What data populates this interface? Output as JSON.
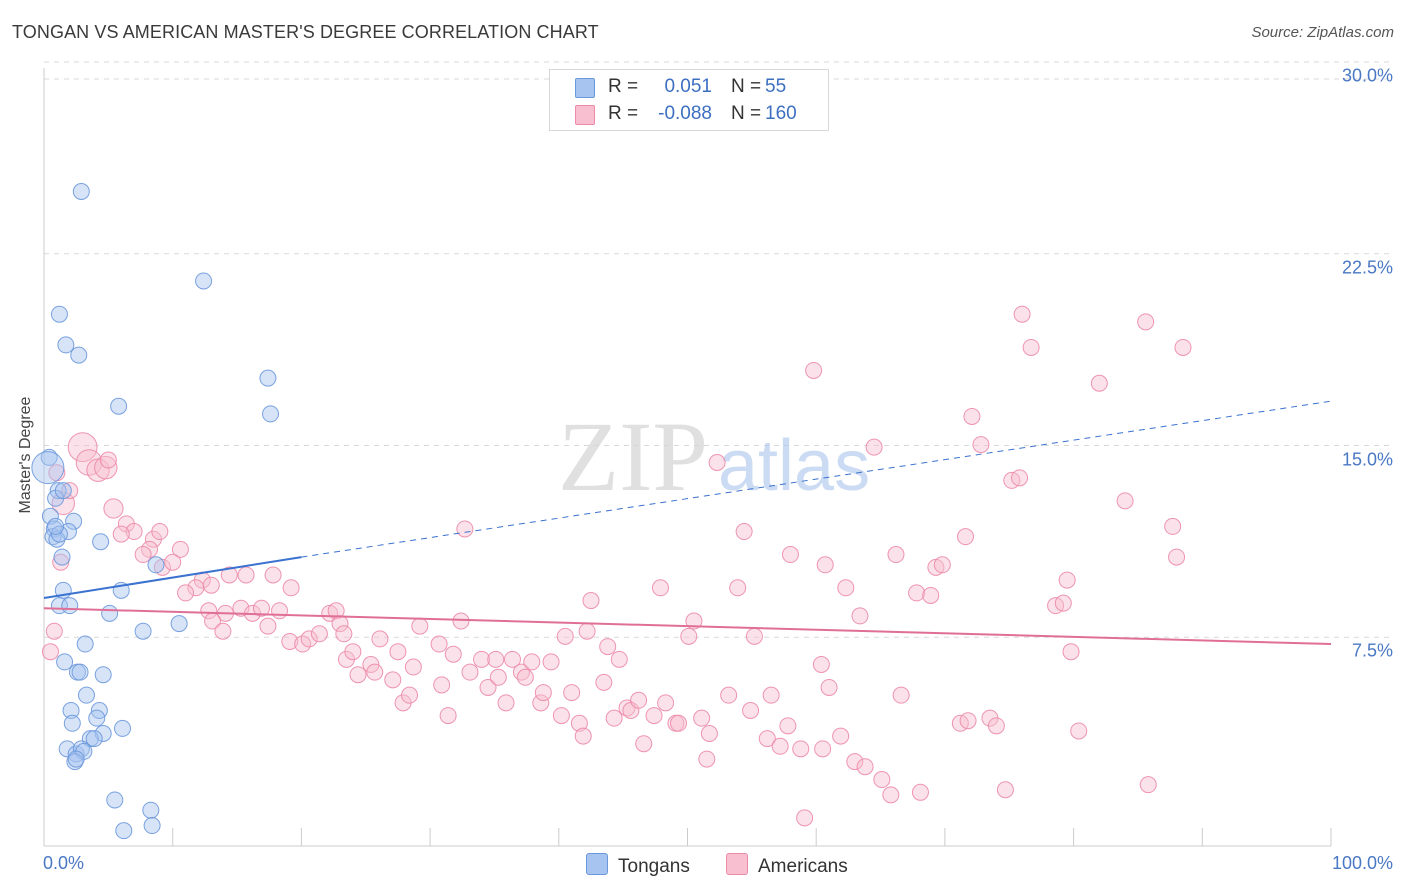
{
  "header": {
    "title": "TONGAN VS AMERICAN MASTER'S DEGREE CORRELATION CHART",
    "source": "Source: ZipAtlas.com"
  },
  "watermark": {
    "zip": "ZIP",
    "atlas": "atlas"
  },
  "legend": {
    "rows": [
      {
        "r_label": "R =",
        "r_value": "0.051",
        "n_label": "N =",
        "n_value": "55",
        "color": "#a7c4f0",
        "stroke": "#6b98dc"
      },
      {
        "r_label": "R =",
        "r_value": "-0.088",
        "n_label": "N =",
        "n_value": "160",
        "color": "#f7bfd0",
        "stroke": "#ec8aa8"
      }
    ]
  },
  "bottom_legend": {
    "tongans": "Tongans",
    "americans": "Americans"
  },
  "colors": {
    "tongan_fill": "#a7c4f0",
    "tongan_stroke": "#6b98dc",
    "tongan_line": "#3a72cf",
    "american_fill": "#f7bfd0",
    "american_stroke": "#ec8aa8",
    "american_line": "#e06f98",
    "tick_text": "#4a78c4",
    "grid": "#d9d9d9"
  },
  "chart_data": {
    "type": "scatter",
    "title": "TONGAN VS AMERICAN MASTER'S DEGREE CORRELATION CHART",
    "xlabel": "",
    "ylabel": "Master's Degree",
    "xlim": [
      0,
      100
    ],
    "ylim": [
      0,
      30
    ],
    "x_tick_labels": [
      "0.0%",
      "100.0%"
    ],
    "y_ticks": [
      7.5,
      15.0,
      22.5,
      30.0
    ],
    "y_tick_labels": [
      "7.5%",
      "15.0%",
      "22.5%",
      "30.0%"
    ],
    "grid": true,
    "legend_position": "top-center",
    "series": [
      {
        "name": "Tongans",
        "r": 0.051,
        "n": 55,
        "trend": {
          "x0": 0,
          "y0": 9.7,
          "x1": 20,
          "y1": 11.3,
          "dashed_x1": 100,
          "dashed_y1": 17.4
        },
        "points": [
          [
            2.9,
            25.6
          ],
          [
            12.4,
            22.1
          ],
          [
            1.2,
            20.8
          ],
          [
            1.7,
            19.6
          ],
          [
            2.7,
            19.2
          ],
          [
            17.4,
            18.3
          ],
          [
            5.8,
            17.2
          ],
          [
            17.6,
            16.9
          ],
          [
            0.4,
            15.2
          ],
          [
            0.3,
            14.8
          ],
          [
            1.1,
            13.9
          ],
          [
            0.9,
            13.6
          ],
          [
            0.5,
            12.9
          ],
          [
            0.8,
            12.4
          ],
          [
            2.3,
            12.7
          ],
          [
            1.9,
            12.3
          ],
          [
            0.7,
            12.1
          ],
          [
            1.0,
            12.0
          ],
          [
            4.4,
            11.9
          ],
          [
            1.4,
            11.3
          ],
          [
            8.7,
            11.0
          ],
          [
            1.5,
            10.0
          ],
          [
            6.0,
            10.0
          ],
          [
            1.2,
            9.4
          ],
          [
            2.0,
            9.4
          ],
          [
            5.1,
            9.1
          ],
          [
            7.7,
            8.4
          ],
          [
            10.5,
            8.7
          ],
          [
            3.2,
            7.9
          ],
          [
            1.6,
            7.2
          ],
          [
            2.6,
            6.8
          ],
          [
            2.8,
            6.8
          ],
          [
            4.6,
            6.7
          ],
          [
            3.3,
            5.9
          ],
          [
            2.1,
            5.3
          ],
          [
            4.3,
            5.3
          ],
          [
            2.2,
            4.8
          ],
          [
            4.1,
            5.0
          ],
          [
            6.1,
            4.6
          ],
          [
            4.6,
            4.4
          ],
          [
            3.6,
            4.2
          ],
          [
            3.9,
            4.2
          ],
          [
            1.8,
            3.8
          ],
          [
            2.5,
            3.6
          ],
          [
            2.9,
            3.8
          ],
          [
            3.1,
            3.7
          ],
          [
            2.4,
            3.3
          ],
          [
            5.5,
            1.8
          ],
          [
            8.3,
            1.4
          ],
          [
            6.2,
            0.6
          ],
          [
            8.4,
            0.8
          ],
          [
            1.5,
            13.9
          ],
          [
            1.2,
            12.2
          ],
          [
            0.9,
            12.5
          ],
          [
            2.5,
            3.4
          ]
        ],
        "sizes": [
          10,
          10,
          10,
          10,
          10,
          10,
          10,
          10,
          10,
          20,
          10,
          10,
          10,
          10,
          10,
          10,
          10,
          10,
          10,
          10,
          10,
          10,
          10,
          10,
          10,
          10,
          10,
          10,
          10,
          10,
          10,
          10,
          10,
          10,
          10,
          10,
          10,
          10,
          10,
          10,
          10,
          10,
          10,
          10,
          10,
          10,
          10,
          10,
          10,
          10,
          10,
          10,
          10,
          10,
          10
        ]
      },
      {
        "name": "Americans",
        "r": -0.088,
        "n": 160,
        "trend": {
          "x0": 0,
          "y0": 9.3,
          "x1": 100,
          "y1": 7.9
        },
        "points": [
          [
            3.0,
            15.6
          ],
          [
            3.5,
            15.0
          ],
          [
            4.2,
            14.7
          ],
          [
            4.8,
            14.8
          ],
          [
            1.5,
            13.4
          ],
          [
            5.4,
            13.2
          ],
          [
            6.4,
            12.6
          ],
          [
            7.0,
            12.3
          ],
          [
            8.5,
            12.0
          ],
          [
            8.2,
            11.6
          ],
          [
            10.6,
            11.6
          ],
          [
            1.3,
            11.1
          ],
          [
            7.7,
            11.4
          ],
          [
            9.2,
            10.9
          ],
          [
            14.4,
            10.6
          ],
          [
            15.7,
            10.6
          ],
          [
            12.3,
            10.4
          ],
          [
            11.8,
            10.1
          ],
          [
            11.0,
            9.9
          ],
          [
            13.0,
            10.2
          ],
          [
            17.8,
            10.6
          ],
          [
            19.2,
            10.1
          ],
          [
            0.8,
            8.4
          ],
          [
            0.5,
            7.6
          ],
          [
            12.8,
            9.2
          ],
          [
            14.1,
            9.1
          ],
          [
            15.3,
            9.3
          ],
          [
            16.2,
            9.1
          ],
          [
            16.9,
            9.3
          ],
          [
            18.3,
            9.2
          ],
          [
            13.1,
            8.8
          ],
          [
            13.9,
            8.4
          ],
          [
            17.4,
            8.6
          ],
          [
            19.1,
            8.0
          ],
          [
            20.1,
            7.9
          ],
          [
            20.6,
            8.1
          ],
          [
            21.4,
            8.3
          ],
          [
            22.2,
            9.1
          ],
          [
            22.7,
            9.2
          ],
          [
            23.0,
            8.7
          ],
          [
            23.3,
            8.3
          ],
          [
            23.5,
            7.3
          ],
          [
            24.4,
            6.7
          ],
          [
            24.0,
            7.6
          ],
          [
            25.4,
            7.1
          ],
          [
            25.7,
            6.8
          ],
          [
            26.1,
            8.1
          ],
          [
            27.1,
            6.5
          ],
          [
            27.9,
            5.6
          ],
          [
            27.5,
            7.6
          ],
          [
            28.4,
            5.9
          ],
          [
            28.7,
            7.0
          ],
          [
            29.2,
            8.6
          ],
          [
            30.7,
            7.9
          ],
          [
            30.9,
            6.3
          ],
          [
            31.4,
            5.1
          ],
          [
            31.8,
            7.5
          ],
          [
            32.4,
            8.8
          ],
          [
            32.7,
            12.4
          ],
          [
            33.1,
            6.8
          ],
          [
            34.0,
            7.3
          ],
          [
            34.5,
            6.2
          ],
          [
            35.1,
            7.3
          ],
          [
            35.3,
            6.6
          ],
          [
            35.9,
            5.6
          ],
          [
            36.4,
            7.3
          ],
          [
            37.1,
            6.8
          ],
          [
            37.4,
            6.6
          ],
          [
            37.9,
            7.2
          ],
          [
            38.6,
            5.6
          ],
          [
            38.8,
            6.0
          ],
          [
            39.4,
            7.2
          ],
          [
            40.2,
            5.1
          ],
          [
            40.5,
            8.2
          ],
          [
            41.0,
            6.0
          ],
          [
            41.6,
            4.8
          ],
          [
            41.9,
            4.3
          ],
          [
            42.5,
            9.6
          ],
          [
            42.2,
            8.4
          ],
          [
            43.5,
            6.4
          ],
          [
            43.8,
            7.8
          ],
          [
            44.3,
            5.0
          ],
          [
            44.7,
            7.3
          ],
          [
            45.3,
            5.4
          ],
          [
            45.6,
            5.3
          ],
          [
            46.2,
            5.7
          ],
          [
            46.6,
            4.0
          ],
          [
            47.4,
            5.1
          ],
          [
            47.9,
            10.1
          ],
          [
            48.3,
            5.6
          ],
          [
            49.1,
            4.8
          ],
          [
            49.3,
            4.8
          ],
          [
            50.1,
            8.2
          ],
          [
            50.5,
            8.8
          ],
          [
            51.1,
            5.0
          ],
          [
            51.5,
            3.4
          ],
          [
            51.7,
            4.4
          ],
          [
            52.3,
            15.0
          ],
          [
            53.2,
            5.9
          ],
          [
            53.9,
            10.1
          ],
          [
            54.4,
            12.3
          ],
          [
            54.9,
            5.3
          ],
          [
            55.2,
            8.2
          ],
          [
            56.2,
            4.2
          ],
          [
            56.5,
            5.9
          ],
          [
            57.2,
            3.9
          ],
          [
            57.8,
            4.7
          ],
          [
            58.0,
            11.4
          ],
          [
            58.8,
            3.8
          ],
          [
            59.1,
            1.1
          ],
          [
            59.8,
            18.6
          ],
          [
            60.5,
            3.8
          ],
          [
            60.4,
            7.1
          ],
          [
            60.7,
            11.0
          ],
          [
            61.0,
            6.2
          ],
          [
            61.9,
            4.3
          ],
          [
            62.3,
            10.1
          ],
          [
            63.0,
            3.3
          ],
          [
            63.4,
            9.0
          ],
          [
            63.8,
            3.1
          ],
          [
            64.5,
            15.6
          ],
          [
            65.1,
            2.6
          ],
          [
            65.8,
            2.0
          ],
          [
            66.2,
            11.4
          ],
          [
            66.6,
            5.9
          ],
          [
            67.8,
            9.9
          ],
          [
            68.1,
            2.1
          ],
          [
            68.9,
            9.8
          ],
          [
            69.3,
            10.9
          ],
          [
            69.8,
            11.0
          ],
          [
            71.2,
            4.8
          ],
          [
            71.6,
            12.1
          ],
          [
            71.8,
            4.9
          ],
          [
            72.1,
            16.8
          ],
          [
            72.8,
            15.7
          ],
          [
            73.5,
            5.0
          ],
          [
            74.0,
            4.7
          ],
          [
            74.7,
            2.2
          ],
          [
            75.2,
            14.3
          ],
          [
            75.8,
            14.4
          ],
          [
            76.0,
            20.8
          ],
          [
            76.7,
            19.5
          ],
          [
            78.6,
            9.4
          ],
          [
            79.2,
            9.5
          ],
          [
            79.5,
            10.4
          ],
          [
            79.8,
            7.6
          ],
          [
            80.4,
            4.5
          ],
          [
            82.0,
            18.1
          ],
          [
            84.0,
            13.5
          ],
          [
            85.6,
            20.5
          ],
          [
            85.8,
            2.4
          ],
          [
            87.7,
            12.5
          ],
          [
            88.0,
            11.3
          ],
          [
            88.5,
            19.5
          ],
          [
            1.0,
            14.6
          ],
          [
            2.0,
            13.9
          ],
          [
            5.0,
            15.1
          ],
          [
            6.0,
            12.2
          ],
          [
            9.0,
            12.3
          ],
          [
            10.0,
            11.1
          ]
        ],
        "sizes": [
          18,
          16,
          14,
          14,
          14,
          12,
          10,
          10,
          10,
          10,
          10,
          10,
          10,
          10,
          10,
          10,
          10,
          10,
          10,
          10,
          10,
          10,
          10,
          10,
          10,
          10,
          10,
          10,
          10,
          10,
          10,
          10,
          10,
          10,
          10,
          10,
          10,
          10,
          10,
          10,
          10,
          10,
          10,
          10,
          10,
          10,
          10,
          10,
          10,
          10,
          10,
          10,
          10,
          10,
          10,
          10,
          10,
          10,
          10,
          10,
          10,
          10,
          10,
          10,
          10,
          10,
          10,
          10,
          10,
          10,
          10,
          10,
          10,
          10,
          10,
          10,
          10,
          10,
          10,
          10,
          10,
          10,
          10,
          10,
          10,
          10,
          10,
          10,
          10,
          10,
          10,
          10,
          10,
          10,
          10,
          10,
          10,
          10,
          10,
          10,
          10,
          10,
          10,
          10,
          10,
          10,
          10,
          10,
          10,
          10,
          10,
          10,
          10,
          10,
          10,
          10,
          10,
          10,
          10,
          10,
          10,
          10,
          10,
          10,
          10,
          10,
          10,
          10,
          10,
          10,
          10,
          10,
          10,
          10,
          10,
          10,
          10,
          10,
          10,
          10,
          10,
          10,
          10,
          10,
          10,
          10,
          10,
          10,
          10,
          10,
          10,
          10,
          10,
          10,
          10,
          10,
          10,
          10,
          10,
          10
        ]
      }
    ]
  }
}
